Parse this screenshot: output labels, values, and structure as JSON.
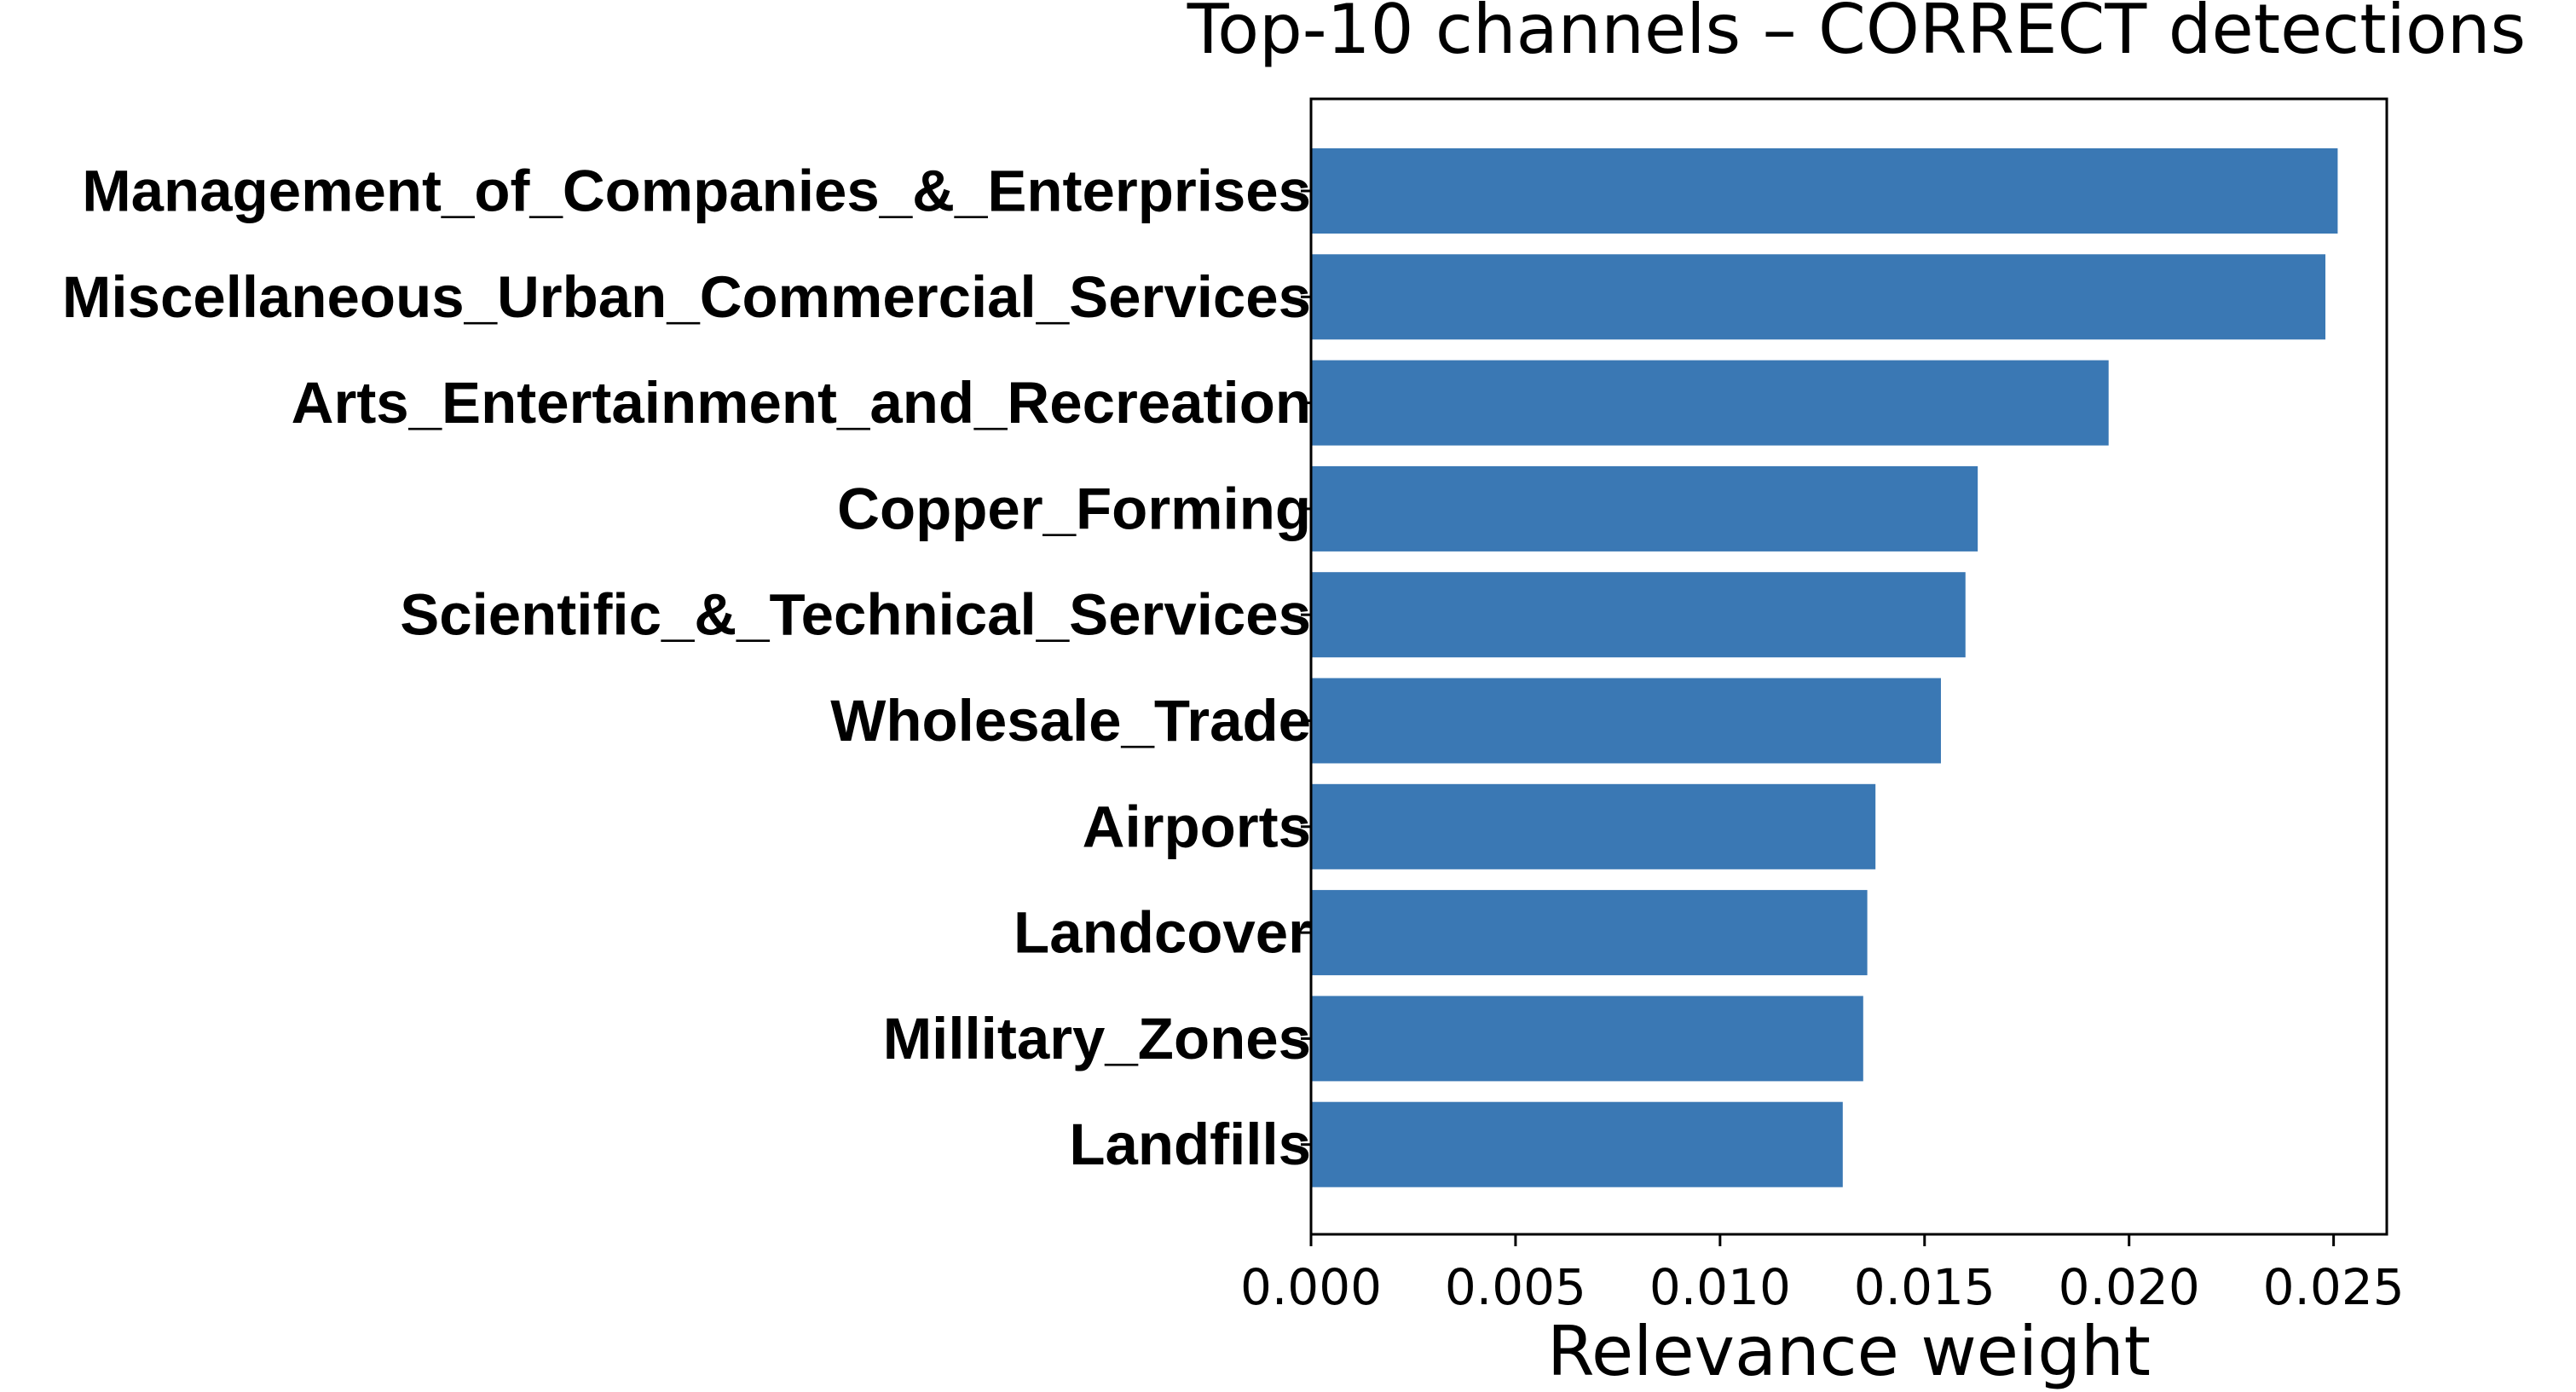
{
  "chart_data": {
    "type": "bar",
    "orientation": "horizontal",
    "title": "Top-10 channels – CORRECT detections",
    "xlabel": "Relevance weight",
    "ylabel": "",
    "categories": [
      "Management_of_Companies_&_Enterprises",
      "Miscellaneous_Urban_Commercial_Services",
      "Arts_Entertainment_and_Recreation",
      "Copper_Forming",
      "Scientific_&_Technical_Services",
      "Wholesale_Trade",
      "Airports",
      "Landcover",
      "Millitary_Zones",
      "Landfills"
    ],
    "values": [
      0.0251,
      0.0248,
      0.0195,
      0.0163,
      0.016,
      0.0154,
      0.0138,
      0.0136,
      0.0135,
      0.013
    ],
    "xlim": [
      0.0,
      0.0263
    ],
    "xticks": [
      "0.000",
      "0.005",
      "0.010",
      "0.015",
      "0.020",
      "0.025"
    ],
    "xtick_values": [
      0.0,
      0.005,
      0.01,
      0.015,
      0.02,
      0.025
    ],
    "bar_color": "#3a78b4",
    "grid": false,
    "legend": "none"
  }
}
